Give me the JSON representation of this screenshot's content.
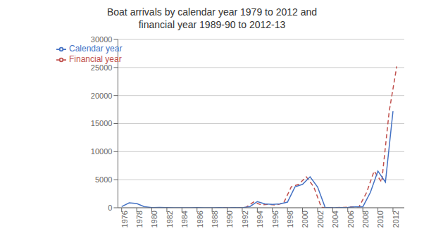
{
  "chart_data": {
    "type": "line",
    "title": "Boat arrivals by calendar year 1979 to 2012 and\nfinancial year 1989-90  to 2012-13",
    "series": [
      {
        "name": "Financial year",
        "color": "#C0504D",
        "line_style": "dashed",
        "x": [
          1989.5,
          1990.5,
          1991.5,
          1992.5,
          1993.5,
          1994.5,
          1995.5,
          1996.5,
          1997.5,
          1998.5,
          1999.5,
          2000.5,
          2001.5,
          2002.5,
          2003.5,
          2004.5,
          2005.5,
          2006.5,
          2007.5,
          2008.5,
          2009.5,
          2010.5,
          2011.5,
          2012.5
        ],
        "values": [
          16,
          14,
          13,
          68,
          1013,
          529,
          589,
          489,
          869,
          3721,
          4174,
          5516,
          3702,
          53,
          15,
          46,
          60,
          148,
          161,
          2726,
          6535,
          4565,
          17202,
          25173
        ]
      },
      {
        "name": "Calendar year",
        "color": "#4472C4",
        "line_style": "solid",
        "x": [
          1976,
          1977,
          1978,
          1979,
          1980,
          1981,
          1982,
          1983,
          1984,
          1985,
          1986,
          1987,
          1988,
          1989,
          1990,
          1991,
          1992,
          1993,
          1994,
          1995,
          1996,
          1997,
          1998,
          1999,
          2000,
          2001,
          2002,
          2003,
          2004,
          2005,
          2006,
          2007,
          2008,
          2009,
          2010,
          2011,
          2012
        ],
        "values": [
          200,
          868,
          760,
          200,
          30,
          50,
          20,
          10,
          10,
          10,
          20,
          10,
          10,
          20,
          15,
          20,
          10,
          200,
          1100,
          700,
          600,
          700,
          1000,
          3721,
          4174,
          5516,
          3702,
          53,
          15,
          46,
          60,
          148,
          161,
          2726,
          6535,
          4565,
          17202
        ]
      }
    ],
    "xlim": [
      1975.5,
      2013.5
    ],
    "xticks": [
      1976,
      1978,
      1980,
      1982,
      1984,
      1986,
      1988,
      1990,
      1992,
      1994,
      1996,
      1998,
      2000,
      2002,
      2004,
      2006,
      2008,
      2010,
      2012
    ],
    "ylim": [
      0,
      30000
    ],
    "yticks": [
      0,
      5000,
      10000,
      15000,
      20000,
      25000,
      30000
    ],
    "grid": "y",
    "legend": "upper left"
  }
}
